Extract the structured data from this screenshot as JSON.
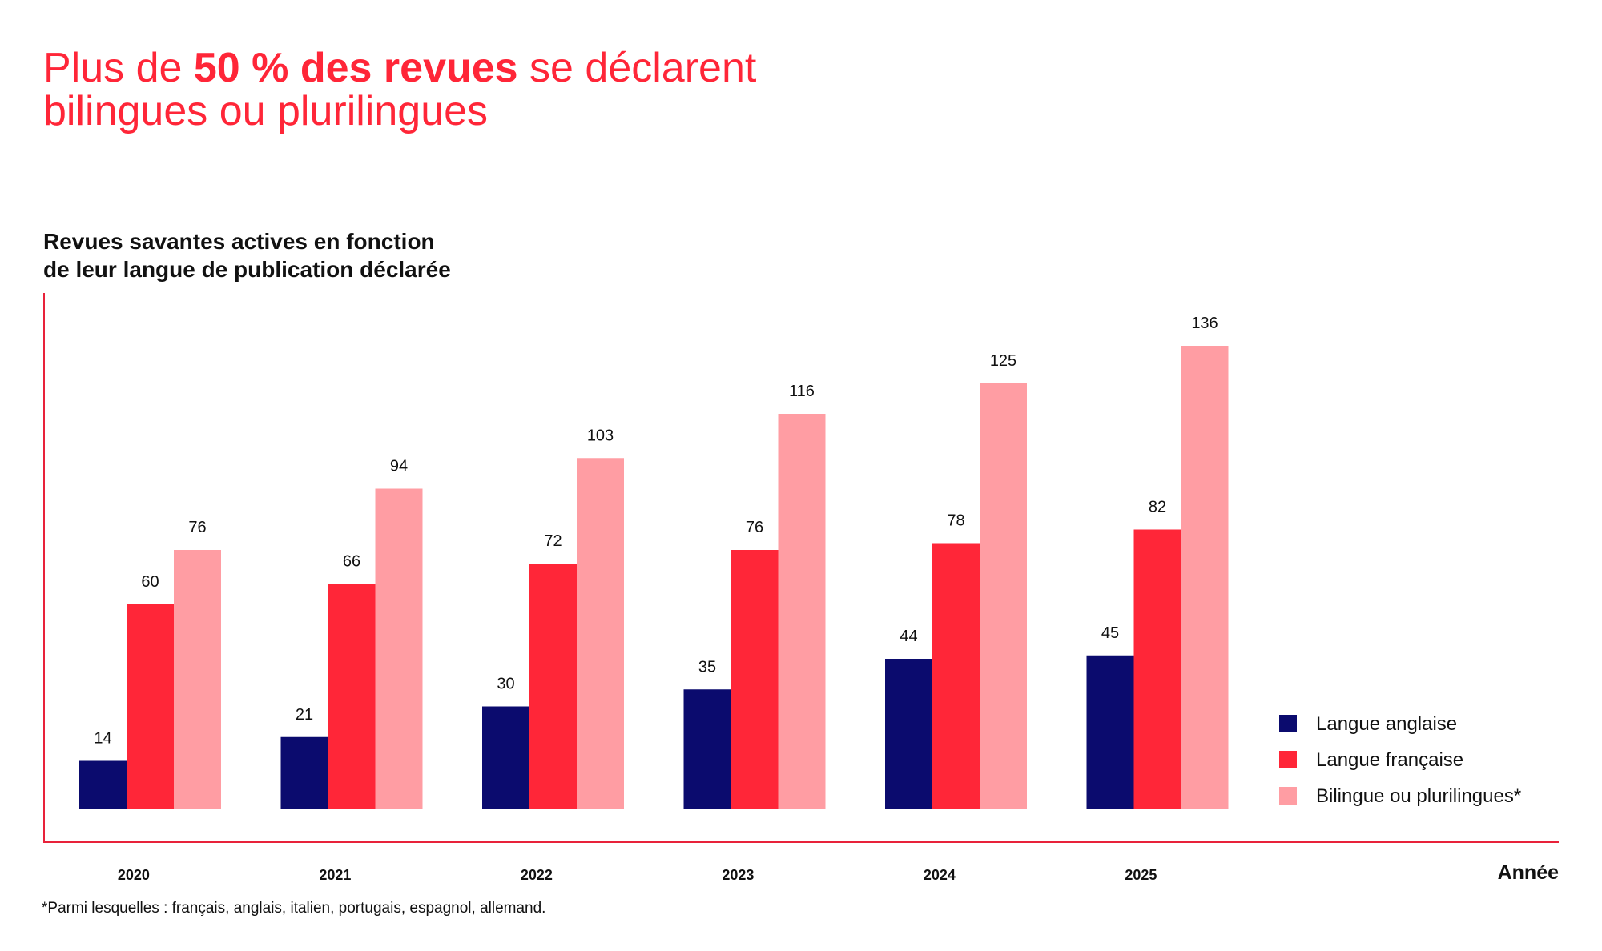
{
  "headline": {
    "prefix": "Plus de ",
    "emphasis": "50 % des revues",
    "suffix": " se déclarent",
    "line2": "bilingues ou plurilingues"
  },
  "colors": {
    "accent": "#ff2638",
    "axis": "#e8223a",
    "english": "#0b0b6e",
    "french": "#ff2638",
    "bilingual": "#ff9da3",
    "text": "#111111"
  },
  "chart_data": {
    "type": "bar",
    "title": "Revues savantes actives en fonction de leur langue de publication déclarée",
    "title_lines": [
      "Revues savantes actives en fonction",
      "de leur langue de publication déclarée"
    ],
    "xlabel": "Année",
    "ylabel": "",
    "categories": [
      "2020",
      "2021",
      "2022",
      "2023",
      "2024",
      "2025"
    ],
    "series": [
      {
        "name": "Langue anglaise",
        "values": [
          14,
          21,
          30,
          35,
          44,
          45
        ]
      },
      {
        "name": "Langue française",
        "values": [
          60,
          66,
          72,
          76,
          78,
          82
        ]
      },
      {
        "name": "Bilingue ou plurilingues*",
        "values": [
          76,
          94,
          103,
          116,
          125,
          136
        ]
      }
    ],
    "ylim": [
      0,
      136
    ],
    "grid": false,
    "legend": "bottom-right"
  },
  "footnote": "*Parmi lesquelles : français, anglais, italien, portugais, espagnol, allemand."
}
